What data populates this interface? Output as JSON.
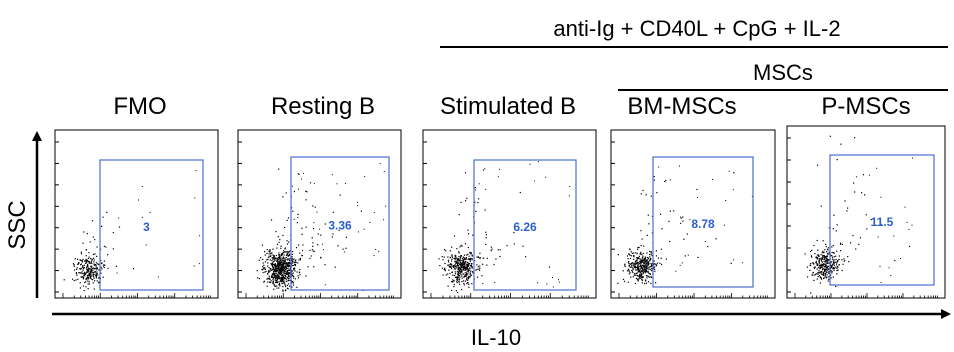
{
  "chart_data": {
    "type": "scatter",
    "title": "",
    "xlabel": "IL-10",
    "ylabel": "SSC",
    "header": {
      "treatment": "anti-Ig + CD40L + CpG + IL-2",
      "coculture": "MSCs"
    },
    "panels": [
      {
        "name": "FMO",
        "gate_percent": "3"
      },
      {
        "name": "Resting B",
        "gate_percent": "3.36"
      },
      {
        "name": "Stimulated B",
        "gate_percent": "6.26"
      },
      {
        "name": "BM-MSCs",
        "gate_percent": "8.78"
      },
      {
        "name": "P-MSCs",
        "gate_percent": "11.5"
      }
    ],
    "colors": {
      "gate": "#4a6fd0",
      "gate_text": "#2c5fce",
      "events": "#000000"
    }
  }
}
